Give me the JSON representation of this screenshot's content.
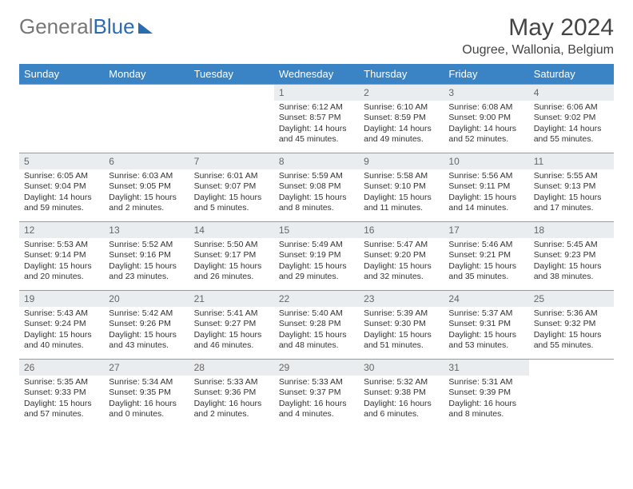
{
  "brand": {
    "part1": "General",
    "part2": "Blue"
  },
  "title": "May 2024",
  "location": "Ougree, Wallonia, Belgium",
  "colors": {
    "header_bg": "#3a84c5",
    "header_text": "#ffffff",
    "daynum_bg": "#e9edf0",
    "rule": "#8aa0b0",
    "body_text": "#333333"
  },
  "weekdays": [
    "Sunday",
    "Monday",
    "Tuesday",
    "Wednesday",
    "Thursday",
    "Friday",
    "Saturday"
  ],
  "weeks": [
    [
      null,
      null,
      null,
      {
        "n": "1",
        "sunrise": "6:12 AM",
        "sunset": "8:57 PM",
        "dl": "14 hours and 45 minutes."
      },
      {
        "n": "2",
        "sunrise": "6:10 AM",
        "sunset": "8:59 PM",
        "dl": "14 hours and 49 minutes."
      },
      {
        "n": "3",
        "sunrise": "6:08 AM",
        "sunset": "9:00 PM",
        "dl": "14 hours and 52 minutes."
      },
      {
        "n": "4",
        "sunrise": "6:06 AM",
        "sunset": "9:02 PM",
        "dl": "14 hours and 55 minutes."
      }
    ],
    [
      {
        "n": "5",
        "sunrise": "6:05 AM",
        "sunset": "9:04 PM",
        "dl": "14 hours and 59 minutes."
      },
      {
        "n": "6",
        "sunrise": "6:03 AM",
        "sunset": "9:05 PM",
        "dl": "15 hours and 2 minutes."
      },
      {
        "n": "7",
        "sunrise": "6:01 AM",
        "sunset": "9:07 PM",
        "dl": "15 hours and 5 minutes."
      },
      {
        "n": "8",
        "sunrise": "5:59 AM",
        "sunset": "9:08 PM",
        "dl": "15 hours and 8 minutes."
      },
      {
        "n": "9",
        "sunrise": "5:58 AM",
        "sunset": "9:10 PM",
        "dl": "15 hours and 11 minutes."
      },
      {
        "n": "10",
        "sunrise": "5:56 AM",
        "sunset": "9:11 PM",
        "dl": "15 hours and 14 minutes."
      },
      {
        "n": "11",
        "sunrise": "5:55 AM",
        "sunset": "9:13 PM",
        "dl": "15 hours and 17 minutes."
      }
    ],
    [
      {
        "n": "12",
        "sunrise": "5:53 AM",
        "sunset": "9:14 PM",
        "dl": "15 hours and 20 minutes."
      },
      {
        "n": "13",
        "sunrise": "5:52 AM",
        "sunset": "9:16 PM",
        "dl": "15 hours and 23 minutes."
      },
      {
        "n": "14",
        "sunrise": "5:50 AM",
        "sunset": "9:17 PM",
        "dl": "15 hours and 26 minutes."
      },
      {
        "n": "15",
        "sunrise": "5:49 AM",
        "sunset": "9:19 PM",
        "dl": "15 hours and 29 minutes."
      },
      {
        "n": "16",
        "sunrise": "5:47 AM",
        "sunset": "9:20 PM",
        "dl": "15 hours and 32 minutes."
      },
      {
        "n": "17",
        "sunrise": "5:46 AM",
        "sunset": "9:21 PM",
        "dl": "15 hours and 35 minutes."
      },
      {
        "n": "18",
        "sunrise": "5:45 AM",
        "sunset": "9:23 PM",
        "dl": "15 hours and 38 minutes."
      }
    ],
    [
      {
        "n": "19",
        "sunrise": "5:43 AM",
        "sunset": "9:24 PM",
        "dl": "15 hours and 40 minutes."
      },
      {
        "n": "20",
        "sunrise": "5:42 AM",
        "sunset": "9:26 PM",
        "dl": "15 hours and 43 minutes."
      },
      {
        "n": "21",
        "sunrise": "5:41 AM",
        "sunset": "9:27 PM",
        "dl": "15 hours and 46 minutes."
      },
      {
        "n": "22",
        "sunrise": "5:40 AM",
        "sunset": "9:28 PM",
        "dl": "15 hours and 48 minutes."
      },
      {
        "n": "23",
        "sunrise": "5:39 AM",
        "sunset": "9:30 PM",
        "dl": "15 hours and 51 minutes."
      },
      {
        "n": "24",
        "sunrise": "5:37 AM",
        "sunset": "9:31 PM",
        "dl": "15 hours and 53 minutes."
      },
      {
        "n": "25",
        "sunrise": "5:36 AM",
        "sunset": "9:32 PM",
        "dl": "15 hours and 55 minutes."
      }
    ],
    [
      {
        "n": "26",
        "sunrise": "5:35 AM",
        "sunset": "9:33 PM",
        "dl": "15 hours and 57 minutes."
      },
      {
        "n": "27",
        "sunrise": "5:34 AM",
        "sunset": "9:35 PM",
        "dl": "16 hours and 0 minutes."
      },
      {
        "n": "28",
        "sunrise": "5:33 AM",
        "sunset": "9:36 PM",
        "dl": "16 hours and 2 minutes."
      },
      {
        "n": "29",
        "sunrise": "5:33 AM",
        "sunset": "9:37 PM",
        "dl": "16 hours and 4 minutes."
      },
      {
        "n": "30",
        "sunrise": "5:32 AM",
        "sunset": "9:38 PM",
        "dl": "16 hours and 6 minutes."
      },
      {
        "n": "31",
        "sunrise": "5:31 AM",
        "sunset": "9:39 PM",
        "dl": "16 hours and 8 minutes."
      },
      null
    ]
  ],
  "labels": {
    "sunrise": "Sunrise: ",
    "sunset": "Sunset: ",
    "daylight": "Daylight: "
  }
}
